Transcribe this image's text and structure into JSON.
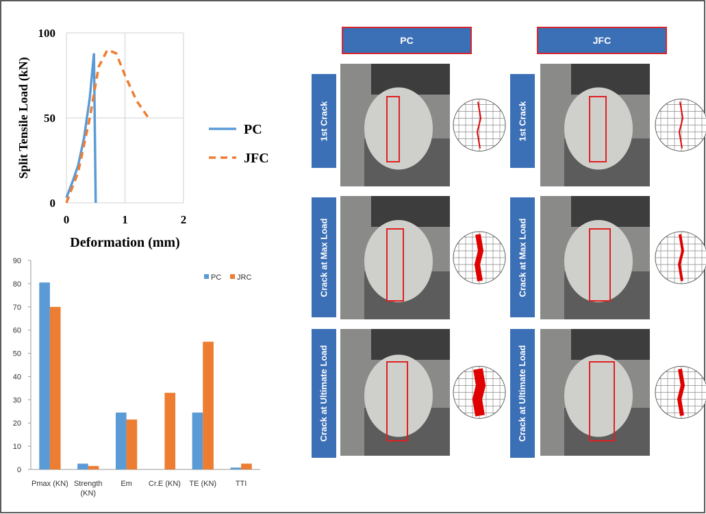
{
  "chart_data": [
    {
      "type": "line",
      "y_label": "Split Tensile Load (kN)",
      "x_label": "Deformation (mm)",
      "xlim": [
        0,
        2
      ],
      "xticks": [
        0,
        1,
        2
      ],
      "ylim": [
        0,
        100
      ],
      "yticks": [
        0,
        50,
        100
      ],
      "grid": true,
      "legend": "right",
      "series": [
        {
          "name": "PC",
          "color": "#5b9bd5",
          "line_style": "solid",
          "x": [
            0,
            0.1,
            0.2,
            0.3,
            0.4,
            0.47,
            0.5
          ],
          "values": [
            3,
            12,
            22,
            38,
            62,
            88,
            0
          ]
        },
        {
          "name": "JFC",
          "color": "#ed7d31",
          "line_style": "dashed",
          "x": [
            0,
            0.2,
            0.4,
            0.55,
            0.7,
            0.85,
            1.0,
            1.2,
            1.4
          ],
          "values": [
            0,
            18,
            50,
            80,
            90,
            88,
            75,
            60,
            50
          ]
        }
      ]
    },
    {
      "type": "bar",
      "categories": [
        "Pmax (KN)",
        "Strength (KN)",
        "Em",
        "Cr.E (KN)",
        "TE (KN)",
        "TTI"
      ],
      "ylim": [
        0,
        90
      ],
      "yticks": [
        0,
        10,
        20,
        30,
        40,
        50,
        60,
        70,
        80,
        90
      ],
      "grid": false,
      "legend": "top-right",
      "series": [
        {
          "name": "PC",
          "color": "#5b9bd5",
          "values": [
            80.5,
            2.5,
            24.5,
            0,
            24.5,
            0.8
          ]
        },
        {
          "name": "JRC",
          "color": "#ed7d31",
          "values": [
            70,
            1.5,
            21.5,
            33,
            55,
            2.5
          ]
        }
      ]
    }
  ],
  "figure": {
    "columns": [
      "PC",
      "JFC"
    ],
    "rows": [
      "1st Crack",
      "Crack at Max Load",
      "Crack at Ultimate Load"
    ]
  }
}
